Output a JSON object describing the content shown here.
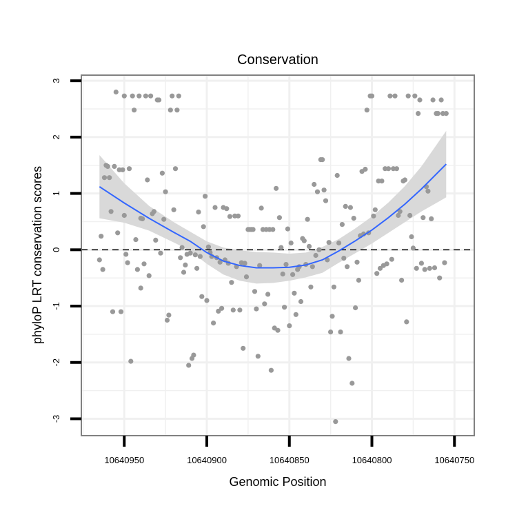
{
  "chart_data": {
    "type": "scatter",
    "title": "Conservation",
    "xlabel": "Genomic Position",
    "ylabel": "phyloP LRT conservation scores",
    "x_reversed": true,
    "xlim": [
      10640976,
      10640738
    ],
    "ylim": [
      -3.3,
      3.1
    ],
    "x_ticks": [
      10640950,
      10640900,
      10640850,
      10640800,
      10640750
    ],
    "x_tick_labels": [
      "10640950",
      "10640900",
      "10640850",
      "10640800",
      "10640750"
    ],
    "y_ticks": [
      3,
      2,
      1,
      0,
      -1,
      -2,
      -3
    ],
    "y_tick_labels": [
      "3",
      "2",
      "1",
      "0",
      "-1",
      "-2",
      "-3"
    ],
    "reference_line": {
      "y": 0,
      "style": "dashed"
    },
    "grid": true,
    "colors": {
      "points": "#999999",
      "smooth_line": "#3366ff",
      "confidence_band": "#d9d9d9",
      "panel_border": "#808080",
      "grid": "#f0f0f0"
    },
    "points": [
      {
        "x": 10640965,
        "y": -0.18
      },
      {
        "x": 10640964,
        "y": 0.24
      },
      {
        "x": 10640963,
        "y": -0.35
      },
      {
        "x": 10640962,
        "y": 1.28
      },
      {
        "x": 10640961,
        "y": 1.5
      },
      {
        "x": 10640960,
        "y": 1.48
      },
      {
        "x": 10640959,
        "y": 1.28
      },
      {
        "x": 10640958,
        "y": 0.68
      },
      {
        "x": 10640957,
        "y": -1.1
      },
      {
        "x": 10640956,
        "y": 1.48
      },
      {
        "x": 10640955,
        "y": 2.8
      },
      {
        "x": 10640954,
        "y": 0.3
      },
      {
        "x": 10640953,
        "y": 1.42
      },
      {
        "x": 10640952,
        "y": -1.1
      },
      {
        "x": 10640951,
        "y": 1.42
      },
      {
        "x": 10640950,
        "y": 0.61
      },
      {
        "x": 10640950,
        "y": 2.73
      },
      {
        "x": 10640949,
        "y": -0.08
      },
      {
        "x": 10640948,
        "y": -0.23
      },
      {
        "x": 10640947,
        "y": 1.44
      },
      {
        "x": 10640946,
        "y": -1.98
      },
      {
        "x": 10640945,
        "y": 2.73
      },
      {
        "x": 10640944,
        "y": 2.48
      },
      {
        "x": 10640943,
        "y": 0.18
      },
      {
        "x": 10640942,
        "y": -0.35
      },
      {
        "x": 10640941,
        "y": 2.73
      },
      {
        "x": 10640940,
        "y": -0.68
      },
      {
        "x": 10640940,
        "y": 0.56
      },
      {
        "x": 10640939,
        "y": 0.55
      },
      {
        "x": 10640938,
        "y": -0.25
      },
      {
        "x": 10640937,
        "y": 2.73
      },
      {
        "x": 10640936,
        "y": 1.24
      },
      {
        "x": 10640935,
        "y": -0.46
      },
      {
        "x": 10640934,
        "y": 2.73
      },
      {
        "x": 10640933,
        "y": 0.64
      },
      {
        "x": 10640932,
        "y": 0.68
      },
      {
        "x": 10640931,
        "y": 0.17
      },
      {
        "x": 10640930,
        "y": 2.66
      },
      {
        "x": 10640929,
        "y": 2.66
      },
      {
        "x": 10640928,
        "y": -0.06
      },
      {
        "x": 10640927,
        "y": 1.36
      },
      {
        "x": 10640926,
        "y": 0.54
      },
      {
        "x": 10640925,
        "y": 1.03
      },
      {
        "x": 10640924,
        "y": -1.25
      },
      {
        "x": 10640923,
        "y": -1.16
      },
      {
        "x": 10640922,
        "y": 2.48
      },
      {
        "x": 10640921,
        "y": 2.73
      },
      {
        "x": 10640920,
        "y": 0.71
      },
      {
        "x": 10640919,
        "y": 1.44
      },
      {
        "x": 10640918,
        "y": 2.48
      },
      {
        "x": 10640917,
        "y": 2.73
      },
      {
        "x": 10640916,
        "y": -0.14
      },
      {
        "x": 10640915,
        "y": 0.04
      },
      {
        "x": 10640914,
        "y": -0.4
      },
      {
        "x": 10640913,
        "y": -0.27
      },
      {
        "x": 10640912,
        "y": -0.08
      },
      {
        "x": 10640911,
        "y": -2.05
      },
      {
        "x": 10640910,
        "y": -0.06
      },
      {
        "x": 10640909,
        "y": -1.93
      },
      {
        "x": 10640908,
        "y": -1.87
      },
      {
        "x": 10640907,
        "y": -0.09
      },
      {
        "x": 10640906,
        "y": -0.33
      },
      {
        "x": 10640905,
        "y": 0.67
      },
      {
        "x": 10640904,
        "y": -0.12
      },
      {
        "x": 10640903,
        "y": -0.83
      },
      {
        "x": 10640902,
        "y": 0.41
      },
      {
        "x": 10640901,
        "y": 0.95
      },
      {
        "x": 10640900,
        "y": -0.9
      },
      {
        "x": 10640899,
        "y": 0.05
      },
      {
        "x": 10640898,
        "y": -0.05
      },
      {
        "x": 10640897,
        "y": -0.12
      },
      {
        "x": 10640896,
        "y": -1.3
      },
      {
        "x": 10640895,
        "y": 0.75
      },
      {
        "x": 10640894,
        "y": -0.14
      },
      {
        "x": 10640893,
        "y": -1.09
      },
      {
        "x": 10640892,
        "y": -0.22
      },
      {
        "x": 10640891,
        "y": -1.04
      },
      {
        "x": 10640890,
        "y": 0.75
      },
      {
        "x": 10640889,
        "y": -0.18
      },
      {
        "x": 10640888,
        "y": 0.73
      },
      {
        "x": 10640887,
        "y": -0.24
      },
      {
        "x": 10640886,
        "y": 0.59
      },
      {
        "x": 10640885,
        "y": -0.58
      },
      {
        "x": 10640884,
        "y": -1.07
      },
      {
        "x": 10640883,
        "y": 0.6
      },
      {
        "x": 10640882,
        "y": -0.3
      },
      {
        "x": 10640881,
        "y": 0.6
      },
      {
        "x": 10640880,
        "y": -1.07
      },
      {
        "x": 10640879,
        "y": -0.23
      },
      {
        "x": 10640878,
        "y": -1.75
      },
      {
        "x": 10640877,
        "y": -0.24
      },
      {
        "x": 10640876,
        "y": -0.48
      },
      {
        "x": 10640875,
        "y": 0.36
      },
      {
        "x": 10640874,
        "y": 0.36
      },
      {
        "x": 10640873,
        "y": 0.36
      },
      {
        "x": 10640872,
        "y": 0.36
      },
      {
        "x": 10640871,
        "y": -0.74
      },
      {
        "x": 10640870,
        "y": -1.05
      },
      {
        "x": 10640869,
        "y": -1.89
      },
      {
        "x": 10640868,
        "y": -0.28
      },
      {
        "x": 10640867,
        "y": 0.74
      },
      {
        "x": 10640866,
        "y": 0.36
      },
      {
        "x": 10640865,
        "y": -0.96
      },
      {
        "x": 10640864,
        "y": 0.36
      },
      {
        "x": 10640863,
        "y": -0.79
      },
      {
        "x": 10640862,
        "y": 0.36
      },
      {
        "x": 10640861,
        "y": -2.14
      },
      {
        "x": 10640860,
        "y": 0.36
      },
      {
        "x": 10640859,
        "y": -1.39
      },
      {
        "x": 10640858,
        "y": 1.09
      },
      {
        "x": 10640857,
        "y": -1.43
      },
      {
        "x": 10640856,
        "y": 0.57
      },
      {
        "x": 10640855,
        "y": 0.04
      },
      {
        "x": 10640854,
        "y": -0.43
      },
      {
        "x": 10640853,
        "y": -1.02
      },
      {
        "x": 10640852,
        "y": -0.26
      },
      {
        "x": 10640851,
        "y": 0.37
      },
      {
        "x": 10640850,
        "y": -1.35
      },
      {
        "x": 10640849,
        "y": 0.12
      },
      {
        "x": 10640848,
        "y": -0.44
      },
      {
        "x": 10640847,
        "y": -0.77
      },
      {
        "x": 10640846,
        "y": -1.15
      },
      {
        "x": 10640845,
        "y": -0.35
      },
      {
        "x": 10640844,
        "y": -0.3
      },
      {
        "x": 10640843,
        "y": -0.92
      },
      {
        "x": 10640842,
        "y": 0.2
      },
      {
        "x": 10640841,
        "y": 0.16
      },
      {
        "x": 10640840,
        "y": -0.26
      },
      {
        "x": 10640839,
        "y": 0.54
      },
      {
        "x": 10640838,
        "y": 0.06
      },
      {
        "x": 10640837,
        "y": -0.66
      },
      {
        "x": 10640836,
        "y": -0.3
      },
      {
        "x": 10640835,
        "y": 1.16
      },
      {
        "x": 10640834,
        "y": -0.1
      },
      {
        "x": 10640833,
        "y": 1.03
      },
      {
        "x": 10640832,
        "y": 0.0
      },
      {
        "x": 10640831,
        "y": 1.6
      },
      {
        "x": 10640830,
        "y": 1.6
      },
      {
        "x": 10640829,
        "y": 1.06
      },
      {
        "x": 10640828,
        "y": 0.87
      },
      {
        "x": 10640827,
        "y": -0.18
      },
      {
        "x": 10640826,
        "y": 0.13
      },
      {
        "x": 10640825,
        "y": -1.46
      },
      {
        "x": 10640824,
        "y": -1.18
      },
      {
        "x": 10640823,
        "y": -0.66
      },
      {
        "x": 10640822,
        "y": -3.05
      },
      {
        "x": 10640821,
        "y": 1.32
      },
      {
        "x": 10640820,
        "y": 0.12
      },
      {
        "x": 10640819,
        "y": -1.46
      },
      {
        "x": 10640818,
        "y": 0.45
      },
      {
        "x": 10640817,
        "y": -0.15
      },
      {
        "x": 10640816,
        "y": 0.77
      },
      {
        "x": 10640815,
        "y": -0.3
      },
      {
        "x": 10640814,
        "y": -1.93
      },
      {
        "x": 10640813,
        "y": 0.75
      },
      {
        "x": 10640812,
        "y": -2.37
      },
      {
        "x": 10640811,
        "y": 0.56
      },
      {
        "x": 10640810,
        "y": -1.03
      },
      {
        "x": 10640809,
        "y": -0.22
      },
      {
        "x": 10640808,
        "y": -0.54
      },
      {
        "x": 10640807,
        "y": 0.25
      },
      {
        "x": 10640806,
        "y": 1.39
      },
      {
        "x": 10640805,
        "y": 0.28
      },
      {
        "x": 10640804,
        "y": 1.43
      },
      {
        "x": 10640803,
        "y": 2.48
      },
      {
        "x": 10640802,
        "y": 0.3
      },
      {
        "x": 10640801,
        "y": 2.73
      },
      {
        "x": 10640800,
        "y": 2.73
      },
      {
        "x": 10640799,
        "y": 0.6
      },
      {
        "x": 10640798,
        "y": 0.71
      },
      {
        "x": 10640797,
        "y": -0.42
      },
      {
        "x": 10640796,
        "y": 1.22
      },
      {
        "x": 10640795,
        "y": -0.33
      },
      {
        "x": 10640794,
        "y": 1.22
      },
      {
        "x": 10640793,
        "y": -0.28
      },
      {
        "x": 10640792,
        "y": 1.44
      },
      {
        "x": 10640791,
        "y": -0.25
      },
      {
        "x": 10640790,
        "y": 1.44
      },
      {
        "x": 10640789,
        "y": 2.73
      },
      {
        "x": 10640788,
        "y": -0.17
      },
      {
        "x": 10640787,
        "y": 1.44
      },
      {
        "x": 10640786,
        "y": 2.73
      },
      {
        "x": 10640785,
        "y": 1.44
      },
      {
        "x": 10640784,
        "y": 0.61
      },
      {
        "x": 10640783,
        "y": 0.68
      },
      {
        "x": 10640782,
        "y": -0.54
      },
      {
        "x": 10640781,
        "y": 1.22
      },
      {
        "x": 10640780,
        "y": 1.24
      },
      {
        "x": 10640779,
        "y": -1.28
      },
      {
        "x": 10640778,
        "y": 2.73
      },
      {
        "x": 10640777,
        "y": 0.61
      },
      {
        "x": 10640776,
        "y": 0.23
      },
      {
        "x": 10640775,
        "y": 0.03
      },
      {
        "x": 10640774,
        "y": 2.73
      },
      {
        "x": 10640773,
        "y": -0.33
      },
      {
        "x": 10640772,
        "y": 2.42
      },
      {
        "x": 10640771,
        "y": 2.66
      },
      {
        "x": 10640770,
        "y": -0.24
      },
      {
        "x": 10640769,
        "y": 0.57
      },
      {
        "x": 10640768,
        "y": -0.35
      },
      {
        "x": 10640767,
        "y": 1.12
      },
      {
        "x": 10640766,
        "y": 1.04
      },
      {
        "x": 10640765,
        "y": -0.33
      },
      {
        "x": 10640764,
        "y": 0.55
      },
      {
        "x": 10640763,
        "y": 2.66
      },
      {
        "x": 10640762,
        "y": -0.32
      },
      {
        "x": 10640761,
        "y": 2.42
      },
      {
        "x": 10640760,
        "y": 2.42
      },
      {
        "x": 10640759,
        "y": -0.5
      },
      {
        "x": 10640758,
        "y": 2.66
      },
      {
        "x": 10640757,
        "y": 2.42
      },
      {
        "x": 10640756,
        "y": -0.23
      },
      {
        "x": 10640755,
        "y": 2.42
      }
    ],
    "smooth": {
      "x": [
        10640965,
        10640950,
        10640935,
        10640920,
        10640910,
        10640900,
        10640890,
        10640880,
        10640870,
        10640860,
        10640850,
        10640840,
        10640830,
        10640820,
        10640810,
        10640800,
        10640790,
        10640780,
        10640770,
        10640755
      ],
      "y": [
        1.12,
        0.83,
        0.56,
        0.31,
        0.15,
        -0.05,
        -0.2,
        -0.28,
        -0.32,
        -0.32,
        -0.31,
        -0.27,
        -0.18,
        -0.02,
        0.16,
        0.35,
        0.57,
        0.81,
        1.08,
        1.52
      ],
      "lower": [
        0.56,
        0.48,
        0.34,
        0.13,
        -0.02,
        -0.25,
        -0.44,
        -0.55,
        -0.6,
        -0.59,
        -0.55,
        -0.49,
        -0.41,
        -0.23,
        -0.06,
        0.11,
        0.3,
        0.49,
        0.68,
        0.93
      ],
      "upper": [
        1.68,
        1.18,
        0.78,
        0.49,
        0.32,
        0.15,
        0.04,
        -0.01,
        -0.04,
        -0.05,
        -0.07,
        -0.05,
        0.05,
        0.19,
        0.38,
        0.59,
        0.84,
        1.13,
        1.48,
        2.11
      ]
    }
  }
}
